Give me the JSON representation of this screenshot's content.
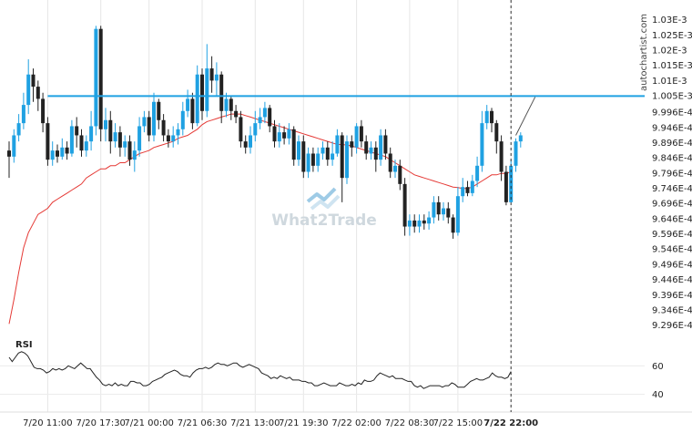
{
  "chart_data": [
    {
      "type": "candlestick",
      "title": "",
      "ylim": [
        0.000925,
        0.001035
      ],
      "y_tick_labels": [
        "1.03E-3",
        "1.025E-3",
        "1.02E-3",
        "1.015E-3",
        "1.01E-3",
        "1.005E-3",
        "9.996E-4",
        "9.946E-4",
        "9.896E-4",
        "9.846E-4",
        "9.796E-4",
        "9.746E-4",
        "9.696E-4",
        "9.646E-4",
        "9.596E-4",
        "9.546E-4",
        "9.496E-4",
        "9.446E-4",
        "9.396E-4",
        "9.346E-4",
        "9.296E-4"
      ],
      "y_tick_values": [
        0.00103,
        0.001025,
        0.00102,
        0.001015,
        0.00101,
        0.001005,
        0.0009996,
        0.0009946,
        0.0009896,
        0.0009846,
        0.0009796,
        0.0009746,
        0.0009696,
        0.0009646,
        0.0009596,
        0.0009546,
        0.0009496,
        0.0009446,
        0.0009396,
        0.0009346,
        0.0009296
      ],
      "x_tick_labels": [
        "7/20 11:00",
        "7/20 17:30",
        "7/21 00:00",
        "7/21 06:30",
        "7/21 13:00",
        "7/21 19:30",
        "7/22 02:00",
        "7/22 08:30",
        "7/22 15:00",
        "7/22 22:00"
      ],
      "x_tick_index": [
        8,
        19,
        29,
        40,
        51,
        61,
        72,
        83,
        93,
        104
      ],
      "resistance_level": 0.0010049,
      "resistance_start_index": 8,
      "current_marker_index": 104,
      "projection": {
        "from": [
          105,
          0.000992
        ],
        "to": [
          109,
          0.0010046
        ]
      },
      "moving_average": [
        0.00093,
        0.000938,
        0.000947,
        0.000955,
        0.00096,
        0.000963,
        0.000966,
        0.000967,
        0.000968,
        0.00097,
        0.000971,
        0.000972,
        0.000973,
        0.000974,
        0.000975,
        0.000976,
        0.000978,
        0.000979,
        0.00098,
        0.000981,
        0.000981,
        0.000982,
        0.000982,
        0.000983,
        0.000983,
        0.000984,
        0.000985,
        0.000986,
        0.0009865,
        0.000987,
        0.000988,
        0.0009885,
        0.000989,
        0.0009895,
        0.00099,
        0.000991,
        0.0009915,
        0.000992,
        0.000993,
        0.000994,
        0.0009955,
        0.0009965,
        0.000997,
        0.0009975,
        0.000998,
        0.0009985,
        0.000999,
        0.000999,
        0.000999,
        0.0009985,
        0.000998,
        0.0009975,
        0.000997,
        0.0009965,
        0.000996,
        0.0009955,
        0.000995,
        0.0009945,
        0.000994,
        0.0009935,
        0.000993,
        0.0009925,
        0.000992,
        0.0009915,
        0.000991,
        0.0009905,
        0.00099,
        0.0009895,
        0.000989,
        0.000989,
        0.0009888,
        0.0009885,
        0.000988,
        0.0009875,
        0.000987,
        0.0009865,
        0.000986,
        0.0009855,
        0.000985,
        0.000984,
        0.000983,
        0.000982,
        0.000981,
        0.00098,
        0.000979,
        0.0009785,
        0.000978,
        0.0009775,
        0.000977,
        0.0009765,
        0.000976,
        0.0009755,
        0.000975,
        0.0009748,
        0.0009745,
        0.0009745,
        0.000975,
        0.000976,
        0.000977,
        0.000978,
        0.000979,
        0.000979,
        0.0009795,
        0.0009795,
        0.00098
      ],
      "candles": [
        [
          0.000987,
          0.000985,
          0.00099,
          0.000978
        ],
        [
          0.000985,
          0.000992,
          0.000994,
          0.000983
        ],
        [
          0.000992,
          0.000996,
          0.000999,
          0.00099
        ],
        [
          0.000996,
          0.001002,
          0.001006,
          0.000994
        ],
        [
          0.001002,
          0.001012,
          0.001017,
          0.000999
        ],
        [
          0.001012,
          0.001008,
          0.001014,
          0.001003
        ],
        [
          0.001008,
          0.001004,
          0.00101,
          0.001
        ],
        [
          0.001004,
          0.000996,
          0.001006,
          0.000993
        ],
        [
          0.000996,
          0.000984,
          0.000998,
          0.000982
        ],
        [
          0.000984,
          0.000987,
          0.00099,
          0.000982
        ],
        [
          0.000987,
          0.000985,
          0.000989,
          0.000983
        ],
        [
          0.000985,
          0.000988,
          0.000991,
          0.000984
        ],
        [
          0.000988,
          0.000986,
          0.00099,
          0.000984
        ],
        [
          0.000986,
          0.000995,
          0.000997,
          0.000985
        ],
        [
          0.000995,
          0.000992,
          0.000998,
          0.000988
        ],
        [
          0.000992,
          0.000987,
          0.000994,
          0.000985
        ],
        [
          0.000987,
          0.00099,
          0.000992,
          0.000985
        ],
        [
          0.00099,
          0.000995,
          0.001,
          0.000987
        ],
        [
          0.000995,
          0.001027,
          0.001028,
          0.000992
        ],
        [
          0.001027,
          0.000994,
          0.001028,
          0.00099
        ],
        [
          0.000994,
          0.000997,
          0.001001,
          0.00099
        ],
        [
          0.000997,
          0.00099,
          0.001,
          0.000986
        ],
        [
          0.00099,
          0.000993,
          0.000996,
          0.000988
        ],
        [
          0.000993,
          0.000988,
          0.000995,
          0.000985
        ],
        [
          0.000988,
          0.00099,
          0.000992,
          0.000985
        ],
        [
          0.00099,
          0.000984,
          0.000992,
          0.000982
        ],
        [
          0.000984,
          0.000987,
          0.00099,
          0.00098
        ],
        [
          0.000987,
          0.000995,
          0.000998,
          0.000985
        ],
        [
          0.000995,
          0.000998,
          0.001,
          0.000993
        ],
        [
          0.000998,
          0.000992,
          0.001,
          0.00099
        ],
        [
          0.000992,
          0.001003,
          0.001006,
          0.00099
        ],
        [
          0.001003,
          0.000997,
          0.001004,
          0.000994
        ],
        [
          0.000997,
          0.000992,
          0.000999,
          0.00099
        ],
        [
          0.000992,
          0.00099,
          0.000994,
          0.000988
        ],
        [
          0.00099,
          0.000992,
          0.000995,
          0.000988
        ],
        [
          0.000992,
          0.000994,
          0.000996,
          0.000989
        ],
        [
          0.000994,
          0.001,
          0.001003,
          0.000992
        ],
        [
          0.001,
          0.001004,
          0.001007,
          0.000998
        ],
        [
          0.001004,
          0.000996,
          0.001006,
          0.000994
        ],
        [
          0.000996,
          0.001012,
          0.001015,
          0.000995
        ],
        [
          0.001012,
          0.001,
          0.001014,
          0.000997
        ],
        [
          0.001,
          0.001014,
          0.001022,
          0.000998
        ],
        [
          0.001014,
          0.00101,
          0.001018,
          0.001006
        ],
        [
          0.00101,
          0.001012,
          0.001016,
          0.001005
        ],
        [
          0.001012,
          0.001,
          0.001013,
          0.000996
        ],
        [
          0.001,
          0.001004,
          0.001006,
          0.000998
        ],
        [
          0.001004,
          0.001,
          0.001005,
          0.000997
        ],
        [
          0.001,
          0.000998,
          0.001002,
          0.000996
        ],
        [
          0.000998,
          0.00099,
          0.001,
          0.000988
        ],
        [
          0.00099,
          0.000988,
          0.000992,
          0.000986
        ],
        [
          0.000988,
          0.000992,
          0.000995,
          0.000986
        ],
        [
          0.000992,
          0.000996,
          0.001,
          0.00099
        ],
        [
          0.000996,
          0.000998,
          0.001001,
          0.000994
        ],
        [
          0.000998,
          0.001001,
          0.001003,
          0.000996
        ],
        [
          0.001001,
          0.000995,
          0.001002,
          0.000993
        ],
        [
          0.000995,
          0.00099,
          0.000997,
          0.000988
        ],
        [
          0.00099,
          0.000993,
          0.000996,
          0.000988
        ],
        [
          0.000993,
          0.000991,
          0.000995,
          0.000989
        ],
        [
          0.000991,
          0.000994,
          0.000996,
          0.000989
        ],
        [
          0.000994,
          0.000984,
          0.000995,
          0.000982
        ],
        [
          0.000984,
          0.00099,
          0.000992,
          0.000982
        ],
        [
          0.00099,
          0.00098,
          0.000992,
          0.000978
        ],
        [
          0.00098,
          0.000986,
          0.000988,
          0.000978
        ],
        [
          0.000986,
          0.000982,
          0.000988,
          0.00098
        ],
        [
          0.000982,
          0.000986,
          0.000988,
          0.00098
        ],
        [
          0.000986,
          0.000988,
          0.00099,
          0.000984
        ],
        [
          0.000988,
          0.000984,
          0.00099,
          0.000982
        ],
        [
          0.000984,
          0.000986,
          0.00099,
          0.000982
        ],
        [
          0.000986,
          0.000992,
          0.000994,
          0.000985
        ],
        [
          0.000992,
          0.000978,
          0.000993,
          0.00097
        ],
        [
          0.000978,
          0.00099,
          0.000992,
          0.000976
        ],
        [
          0.00099,
          0.000988,
          0.000992,
          0.000985
        ],
        [
          0.000988,
          0.000995,
          0.000996,
          0.000986
        ],
        [
          0.000995,
          0.00099,
          0.000997,
          0.000988
        ],
        [
          0.00099,
          0.000986,
          0.000992,
          0.000984
        ],
        [
          0.000986,
          0.000988,
          0.00099,
          0.000984
        ],
        [
          0.000988,
          0.000984,
          0.00099,
          0.00098
        ],
        [
          0.000984,
          0.000992,
          0.000994,
          0.000982
        ],
        [
          0.000992,
          0.000986,
          0.000994,
          0.000984
        ],
        [
          0.000986,
          0.00098,
          0.000988,
          0.000978
        ],
        [
          0.00098,
          0.000982,
          0.000984,
          0.000978
        ],
        [
          0.000982,
          0.000976,
          0.000984,
          0.000974
        ],
        [
          0.000976,
          0.000962,
          0.000978,
          0.000959
        ],
        [
          0.000962,
          0.000964,
          0.000966,
          0.000959
        ],
        [
          0.000964,
          0.000962,
          0.000966,
          0.00096
        ],
        [
          0.000962,
          0.000964,
          0.000966,
          0.00096
        ],
        [
          0.000964,
          0.000963,
          0.000966,
          0.000961
        ],
        [
          0.000963,
          0.000965,
          0.000967,
          0.000961
        ],
        [
          0.000965,
          0.00097,
          0.000972,
          0.000963
        ],
        [
          0.00097,
          0.000966,
          0.000972,
          0.000964
        ],
        [
          0.000966,
          0.000968,
          0.00097,
          0.000964
        ],
        [
          0.000968,
          0.000965,
          0.00097,
          0.000963
        ],
        [
          0.000965,
          0.00096,
          0.000966,
          0.000958
        ],
        [
          0.00096,
          0.000972,
          0.000975,
          0.000959
        ],
        [
          0.000972,
          0.000975,
          0.000978,
          0.00097
        ],
        [
          0.000975,
          0.000973,
          0.000977,
          0.000972
        ],
        [
          0.000973,
          0.000977,
          0.000979,
          0.000972
        ],
        [
          0.000977,
          0.000982,
          0.000985,
          0.000975
        ],
        [
          0.000982,
          0.000996,
          0.001,
          0.00098
        ],
        [
          0.000996,
          0.001,
          0.001002,
          0.000994
        ],
        [
          0.001,
          0.000996,
          0.001001,
          0.000993
        ],
        [
          0.000996,
          0.00099,
          0.000997,
          0.000986
        ],
        [
          0.00099,
          0.00098,
          0.000992,
          0.000977
        ],
        [
          0.00098,
          0.00097,
          0.000982,
          0.000969
        ],
        [
          0.00097,
          0.000982,
          0.000984,
          0.00097
        ],
        [
          0.000982,
          0.00099,
          0.000991,
          0.00098
        ],
        [
          0.00099,
          0.000992,
          0.000993,
          0.000988
        ]
      ],
      "colors": {
        "up": "#1fa1e2",
        "down": "#222222",
        "ma": "#e53935",
        "resistance": "#1fa1e2"
      }
    },
    {
      "type": "line",
      "title": "RSI",
      "ylim": [
        30,
        75
      ],
      "y_tick_labels": [
        "60",
        "40"
      ],
      "y_tick_values": [
        60,
        40
      ],
      "values": [
        66,
        63,
        66,
        69,
        70,
        69,
        67,
        63,
        59,
        58,
        58,
        57,
        55,
        56,
        58,
        57,
        58,
        57,
        58,
        60,
        59,
        58,
        60,
        62,
        60,
        58,
        58,
        55,
        52,
        50,
        47,
        46,
        47,
        46,
        48,
        46,
        47,
        46,
        46,
        49,
        49,
        48,
        48,
        46,
        46,
        47,
        49,
        50,
        51,
        52,
        54,
        55,
        56,
        57,
        56,
        54,
        53,
        53,
        52,
        55,
        57,
        58,
        58,
        59,
        58,
        59,
        61,
        62,
        61,
        61,
        60,
        61,
        62,
        62,
        60,
        59,
        60,
        61,
        60,
        59,
        58,
        55,
        54,
        53,
        51,
        52,
        51,
        53,
        52,
        51,
        52,
        50,
        50,
        50,
        49,
        49,
        48,
        48,
        46,
        46,
        47,
        48,
        47,
        46,
        46,
        46,
        48,
        47,
        46,
        46,
        47,
        46,
        48,
        47,
        50,
        49,
        49,
        50,
        53,
        55,
        54,
        53,
        52,
        53,
        51,
        51,
        51,
        50,
        49,
        49,
        46,
        45,
        46,
        44,
        45,
        46,
        46,
        46,
        46,
        45,
        46,
        46,
        48,
        47,
        45,
        45,
        45,
        47,
        49,
        50,
        51,
        50,
        50,
        51,
        52,
        55,
        53,
        52,
        52,
        51,
        52,
        56
      ],
      "color": "#222222"
    }
  ],
  "watermark_text": "autochartist.com",
  "logo_text": "What2Trade"
}
